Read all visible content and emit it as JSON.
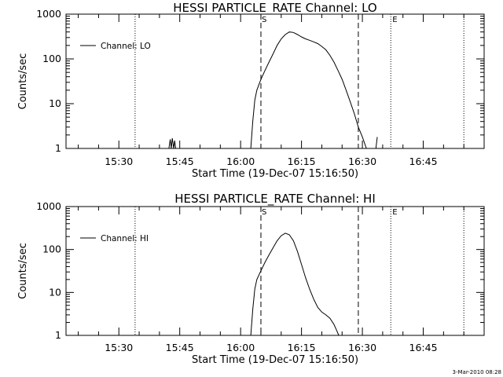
{
  "chart_data": [
    {
      "type": "line",
      "title": "HESSI PARTICLE_RATE Channel: LO",
      "xlabel": "Start Time (19-Dec-07 15:16:50)",
      "ylabel": "Counts/sec",
      "yscale": "log",
      "ylim": [
        1,
        1000
      ],
      "xlim_minutes": [
        15.283,
        17.0
      ],
      "xticks": [
        "15:30",
        "15:45",
        "16:00",
        "16:15",
        "16:30",
        "16:45"
      ],
      "yticks": [
        "1",
        "10",
        "100",
        "1000"
      ],
      "legend": {
        "label": "Channel: LO",
        "placement": "top-left"
      },
      "markers": {
        "start": "S",
        "end": "E"
      },
      "dotted_lines_time": [
        "15:34",
        "16:37",
        "16:55"
      ],
      "dashed_lines_time": [
        "16:05",
        "16:29"
      ],
      "series": [
        {
          "name": "Channel: LO",
          "x": [
            "15:42:20",
            "15:42:40",
            "15:42:55",
            "15:43:10",
            "15:43:30",
            "15:43:45",
            "15:44:00",
            "16:02:30",
            "16:03:00",
            "16:03:30",
            "16:04:00",
            "16:05:00",
            "16:06:00",
            "16:07:00",
            "16:08:00",
            "16:09:00",
            "16:10:00",
            "16:11:00",
            "16:12:00",
            "16:13:00",
            "16:14:00",
            "16:15:00",
            "16:16:00",
            "16:17:00",
            "16:18:00",
            "16:19:00",
            "16:20:00",
            "16:21:00",
            "16:22:00",
            "16:23:00",
            "16:24:00",
            "16:25:00",
            "16:26:00",
            "16:27:00",
            "16:28:00",
            "16:29:00",
            "16:30:00",
            "16:31:00",
            "16:33:20",
            "16:33:40"
          ],
          "y": [
            1,
            1.6,
            1,
            1.7,
            1,
            1.5,
            1,
            1,
            4,
            12,
            20,
            35,
            55,
            85,
            130,
            200,
            280,
            350,
            400,
            390,
            350,
            310,
            280,
            260,
            240,
            220,
            190,
            160,
            120,
            85,
            55,
            35,
            20,
            11,
            6,
            3,
            1.8,
            1,
            1,
            1.8
          ]
        }
      ]
    },
    {
      "type": "line",
      "title": "HESSI PARTICLE_RATE Channel: HI",
      "xlabel": "Start Time (19-Dec-07 15:16:50)",
      "ylabel": "Counts/sec",
      "yscale": "log",
      "ylim": [
        1,
        1000
      ],
      "xlim_minutes": [
        15.283,
        17.0
      ],
      "xticks": [
        "15:30",
        "15:45",
        "16:00",
        "16:15",
        "16:30",
        "16:45"
      ],
      "yticks": [
        "1",
        "10",
        "100",
        "1000"
      ],
      "legend": {
        "label": "Channel: HI",
        "placement": "top-left"
      },
      "markers": {
        "start": "S",
        "end": "E"
      },
      "dotted_lines_time": [
        "15:34",
        "16:37",
        "16:55"
      ],
      "dashed_lines_time": [
        "16:05",
        "16:29"
      ],
      "series": [
        {
          "name": "Channel: HI",
          "x": [
            "16:02:30",
            "16:03:00",
            "16:03:30",
            "16:04:00",
            "16:05:00",
            "16:06:00",
            "16:07:00",
            "16:08:00",
            "16:09:00",
            "16:10:00",
            "16:11:00",
            "16:12:00",
            "16:13:00",
            "16:14:00",
            "16:15:00",
            "16:16:00",
            "16:17:00",
            "16:18:00",
            "16:19:00",
            "16:20:00",
            "16:21:00",
            "16:22:00",
            "16:23:00",
            "16:23:40",
            "16:24:10"
          ],
          "y": [
            1,
            4,
            12,
            20,
            32,
            50,
            75,
            110,
            160,
            210,
            240,
            220,
            160,
            90,
            45,
            22,
            12,
            7,
            4.5,
            3.5,
            3,
            2.5,
            1.8,
            1.3,
            1
          ]
        }
      ]
    }
  ],
  "footer": {
    "timestamp": "3-Mar-2010 08:28"
  }
}
